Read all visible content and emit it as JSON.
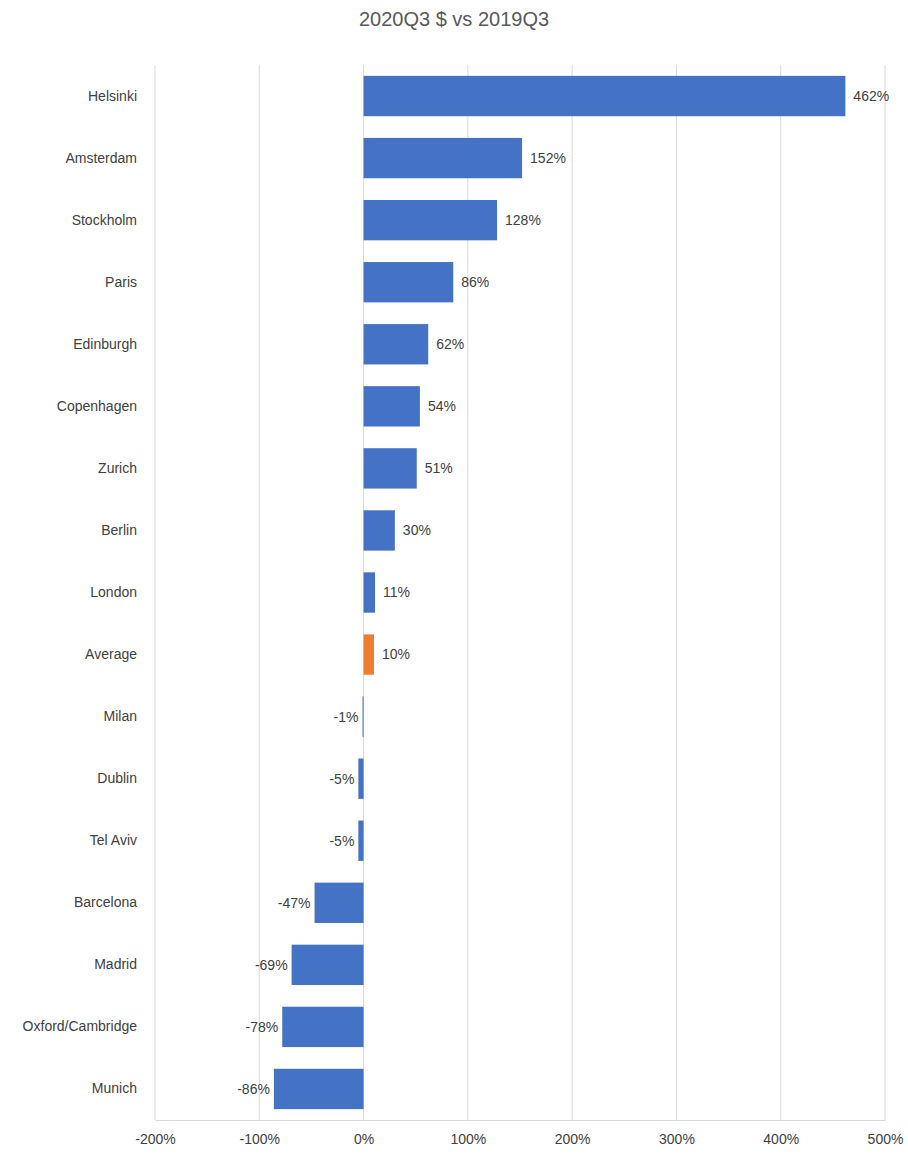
{
  "chart_data": {
    "type": "bar",
    "orientation": "horizontal",
    "title": "2020Q3 $ vs 2019Q3",
    "categories": [
      "Helsinki",
      "Amsterdam",
      "Stockholm",
      "Paris",
      "Edinburgh",
      "Copenhagen",
      "Zurich",
      "Berlin",
      "London",
      "Average",
      "Milan",
      "Dublin",
      "Tel Aviv",
      "Barcelona",
      "Madrid",
      "Oxford/Cambridge",
      "Munich"
    ],
    "values": [
      462,
      152,
      128,
      86,
      62,
      54,
      51,
      30,
      11,
      10,
      -1,
      -5,
      -5,
      -47,
      -69,
      -78,
      -86
    ],
    "value_labels": [
      "462%",
      "152%",
      "128%",
      "86%",
      "62%",
      "54%",
      "51%",
      "30%",
      "11%",
      "10%",
      "-1%",
      "-5%",
      "-5%",
      "-47%",
      "-69%",
      "-78%",
      "-86%"
    ],
    "colors": [
      "#4472c4",
      "#4472c4",
      "#4472c4",
      "#4472c4",
      "#4472c4",
      "#4472c4",
      "#4472c4",
      "#4472c4",
      "#4472c4",
      "#ed7d31",
      "#4472c4",
      "#4472c4",
      "#4472c4",
      "#4472c4",
      "#4472c4",
      "#4472c4",
      "#4472c4"
    ],
    "xlim": [
      -200,
      500
    ],
    "xticks": [
      {
        "value": -200,
        "label": "-200%"
      },
      {
        "value": -100,
        "label": "-100%"
      },
      {
        "value": 0,
        "label": "0%"
      },
      {
        "value": 100,
        "label": "100%"
      },
      {
        "value": 200,
        "label": "200%"
      },
      {
        "value": 300,
        "label": "300%"
      },
      {
        "value": 400,
        "label": "400%"
      },
      {
        "value": 500,
        "label": "500%"
      }
    ],
    "grid": true,
    "data_labels": true
  }
}
